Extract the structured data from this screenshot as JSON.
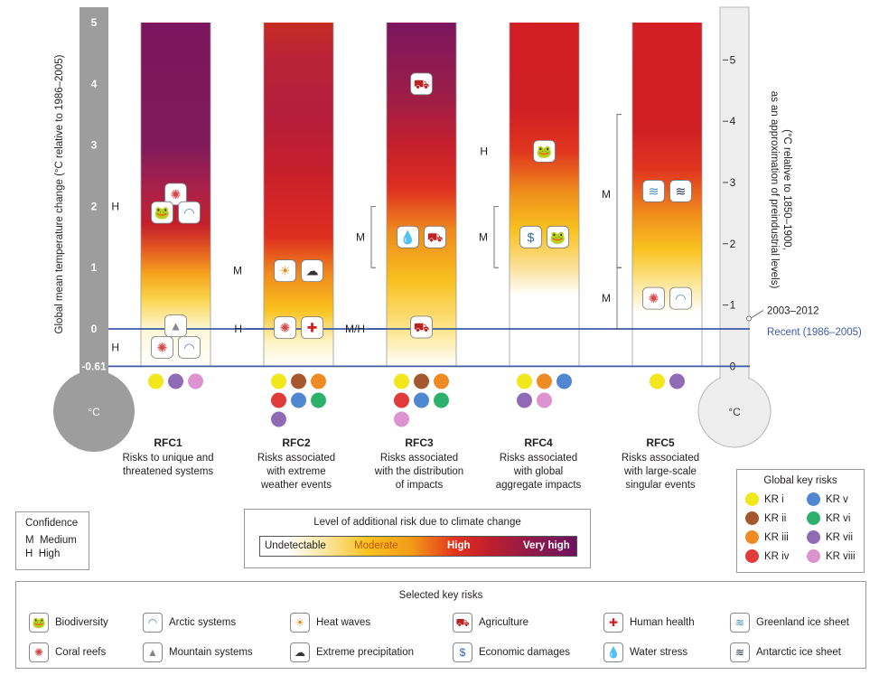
{
  "chart_data": {
    "type": "bar",
    "ylabel_left": "Global mean temperature change (°C relative to 1986–2005)",
    "ylabel_right": "(°C relative to 1850–1900, as an approximation of preindustrial levels)",
    "left_ticks": [
      "5",
      "4",
      "3",
      "2",
      "1",
      "0",
      "-0.61"
    ],
    "right_ticks": [
      "5",
      "4",
      "3",
      "2",
      "1",
      "0"
    ],
    "thermometer_unit": "°C",
    "ylim": [
      -0.61,
      5
    ],
    "reference_lines": [
      {
        "label": "Recent (1986–2005)",
        "value": 0,
        "color": "#3c5aa6"
      },
      {
        "label": "",
        "value": -0.61,
        "color": "#3c5aa6"
      }
    ],
    "marker_label": "2003–2012",
    "marker_value": 0.17,
    "categories": [
      "RFC1",
      "RFC2",
      "RFC3",
      "RFC4",
      "RFC5"
    ],
    "columns": [
      {
        "name": "RFC1",
        "desc": [
          "Risks to unique and",
          "threatened systems"
        ],
        "white_top": 0,
        "kr_colors": [
          "#f2e61c",
          "#8f6bb6",
          "#dd93cf"
        ],
        "stops": [
          [
            -0.61,
            "#ffffff"
          ],
          [
            0,
            "#fff7d6"
          ],
          [
            0.5,
            "#fbd34a"
          ],
          [
            0.9,
            "#f6a21c"
          ],
          [
            1.3,
            "#e45a22"
          ],
          [
            1.7,
            "#c41f2c"
          ],
          [
            2.3,
            "#a8204a"
          ],
          [
            3.0,
            "#801a5a"
          ],
          [
            5,
            "#7b165f"
          ]
        ]
      },
      {
        "name": "RFC2",
        "desc": [
          "Risks associated",
          "with extreme",
          "weather events"
        ],
        "white_top": 0,
        "kr_colors": [
          "#f2e61c",
          "#a5572e",
          "#ee8b23",
          "#e23b3b",
          "#4f87d1",
          "#2eb06d",
          "#8f6bb6"
        ],
        "stops": [
          [
            -0.61,
            "#ffffff"
          ],
          [
            -0.2,
            "#fff3c2"
          ],
          [
            0.3,
            "#f9c31f"
          ],
          [
            0.9,
            "#f08a1c"
          ],
          [
            1.5,
            "#de2e20"
          ],
          [
            2.5,
            "#c81f2a"
          ],
          [
            3.5,
            "#b51e3b"
          ],
          [
            4.4,
            "#b82338"
          ],
          [
            5,
            "#c52b22"
          ]
        ]
      },
      {
        "name": "RFC3",
        "desc": [
          "Risks associated",
          "with the distribution",
          "of impacts"
        ],
        "white_top": 0,
        "kr_colors": [
          "#f2e61c",
          "#a5572e",
          "#ee8b23",
          "#e23b3b",
          "#4f87d1",
          "#2eb06d",
          "#dd93cf"
        ],
        "stops": [
          [
            -0.61,
            "#ffffff"
          ],
          [
            0,
            "#fde58a"
          ],
          [
            0.8,
            "#f8c01f"
          ],
          [
            1.6,
            "#f08a1c"
          ],
          [
            2.3,
            "#de2e20"
          ],
          [
            3.0,
            "#c41e2c"
          ],
          [
            3.8,
            "#9d1d48"
          ],
          [
            5,
            "#7b165f"
          ]
        ]
      },
      {
        "name": "RFC4",
        "desc": [
          "Risks associated",
          "with global",
          "aggregate impacts"
        ],
        "white_top": 0.55,
        "kr_colors": [
          "#f2e61c",
          "#ee8b23",
          "#4f87d1",
          "#8f6bb6",
          "#dd93cf"
        ],
        "stops": [
          [
            0.55,
            "#ffffff"
          ],
          [
            1.0,
            "#fbe09a"
          ],
          [
            1.6,
            "#f9c31f"
          ],
          [
            2.2,
            "#f0921c"
          ],
          [
            2.9,
            "#e0351f"
          ],
          [
            3.6,
            "#cf1e24"
          ],
          [
            5,
            "#d01e24"
          ]
        ]
      },
      {
        "name": "RFC5",
        "desc": [
          "Risks associated",
          "with large-scale",
          "singular events"
        ],
        "white_top": 0.25,
        "kr_colors": [
          "#f2e61c",
          "#8f6bb6"
        ],
        "stops": [
          [
            0.25,
            "#ffffff"
          ],
          [
            0.7,
            "#fde8a0"
          ],
          [
            1.3,
            "#f9c31f"
          ],
          [
            1.9,
            "#f08a1c"
          ],
          [
            2.6,
            "#e0351f"
          ],
          [
            3.3,
            "#d01e24"
          ],
          [
            5,
            "#d21e24"
          ]
        ]
      }
    ],
    "confidence_marks": [
      {
        "col": 0,
        "text": "H",
        "value": 2.0
      },
      {
        "col": 0,
        "text": "H",
        "value": -0.3
      },
      {
        "col": 1,
        "text": "M",
        "value": 0.95
      },
      {
        "col": 1,
        "text": "H",
        "value": 0
      },
      {
        "col": 2,
        "text": "M",
        "value": 1.5,
        "bracket": [
          1.0,
          2.0
        ]
      },
      {
        "col": 2,
        "text": "M/H",
        "value": 0
      },
      {
        "col": 3,
        "text": "H",
        "value": 2.9
      },
      {
        "col": 3,
        "text": "M",
        "value": 1.5,
        "bracket": [
          1.0,
          2.0
        ]
      },
      {
        "col": 4,
        "text": "M",
        "value": 2.2,
        "bracket": [
          1.0,
          3.5
        ]
      },
      {
        "col": 4,
        "text": "M",
        "value": 0.5,
        "bracket": [
          0,
          1.0
        ]
      }
    ],
    "risk_icons": [
      {
        "col": 0,
        "value": 2.2,
        "offset": 0,
        "icon": "coral-reefs-icon"
      },
      {
        "col": 0,
        "value": 1.9,
        "offset": -1,
        "icon": "biodiversity-icon"
      },
      {
        "col": 0,
        "value": 1.9,
        "offset": 1,
        "icon": "arctic-systems-icon"
      },
      {
        "col": 0,
        "value": 0.05,
        "offset": 0,
        "icon": "mountain-systems-icon"
      },
      {
        "col": 0,
        "value": -0.3,
        "offset": -1,
        "icon": "coral-reefs-icon"
      },
      {
        "col": 0,
        "value": -0.3,
        "offset": 1,
        "icon": "arctic-systems-icon"
      },
      {
        "col": 1,
        "value": 0.95,
        "offset": -1,
        "icon": "heat-waves-icon"
      },
      {
        "col": 1,
        "value": 0.95,
        "offset": 1,
        "icon": "extreme-precipitation-icon"
      },
      {
        "col": 1,
        "value": 0.02,
        "offset": -1,
        "icon": "coral-reefs-icon"
      },
      {
        "col": 1,
        "value": 0.02,
        "offset": 1,
        "icon": "human-health-icon"
      },
      {
        "col": 2,
        "value": 4.0,
        "offset": 0,
        "icon": "agriculture-icon"
      },
      {
        "col": 2,
        "value": 1.5,
        "offset": -1,
        "icon": "water-stress-icon"
      },
      {
        "col": 2,
        "value": 1.5,
        "offset": 1,
        "icon": "agriculture-icon"
      },
      {
        "col": 2,
        "value": 0.03,
        "offset": 0,
        "icon": "agriculture-icon"
      },
      {
        "col": 3,
        "value": 2.9,
        "offset": 0,
        "icon": "biodiversity-icon"
      },
      {
        "col": 3,
        "value": 1.5,
        "offset": -1,
        "icon": "economic-damages-icon"
      },
      {
        "col": 3,
        "value": 1.5,
        "offset": 1,
        "icon": "biodiversity-icon"
      },
      {
        "col": 4,
        "value": 2.25,
        "offset": -1,
        "icon": "greenland-ice-sheet-icon"
      },
      {
        "col": 4,
        "value": 2.25,
        "offset": 1,
        "icon": "antarctic-ice-sheet-icon"
      },
      {
        "col": 4,
        "value": 0.5,
        "offset": -1,
        "icon": "coral-reefs-icon"
      },
      {
        "col": 4,
        "value": 0.5,
        "offset": 1,
        "icon": "arctic-systems-icon"
      }
    ]
  },
  "confidence": {
    "title": "Confidence",
    "m": "M  Medium",
    "h": "H  High"
  },
  "level": {
    "title": "Level of additional risk due to climate change",
    "undetectable": "Undetectable",
    "moderate": "Moderate",
    "high": "High",
    "very_high": "Very high"
  },
  "global_key_risks": {
    "title": "Global key risks",
    "items": [
      {
        "label": "KR i",
        "color": "#f2e61c"
      },
      {
        "label": "KR v",
        "color": "#4f87d1"
      },
      {
        "label": "KR ii",
        "color": "#a5572e"
      },
      {
        "label": "KR vi",
        "color": "#2eb06d"
      },
      {
        "label": "KR iii",
        "color": "#ee8b23"
      },
      {
        "label": "KR vii",
        "color": "#8f6bb6"
      },
      {
        "label": "KR iv",
        "color": "#e23b3b"
      },
      {
        "label": "KR viii",
        "color": "#dd93cf"
      }
    ]
  },
  "selected_key_risks": {
    "title": "Selected key risks",
    "items": [
      {
        "label": "Biodiversity",
        "icon": "biodiversity-icon"
      },
      {
        "label": "Coral reefs",
        "icon": "coral-reefs-icon"
      },
      {
        "label": "Arctic systems",
        "icon": "arctic-systems-icon"
      },
      {
        "label": "Mountain systems",
        "icon": "mountain-systems-icon"
      },
      {
        "label": "Heat waves",
        "icon": "heat-waves-icon"
      },
      {
        "label": "Extreme precipitation",
        "icon": "extreme-precipitation-icon"
      },
      {
        "label": "Agriculture",
        "icon": "agriculture-icon"
      },
      {
        "label": "Economic damages",
        "icon": "economic-damages-icon"
      },
      {
        "label": "Human health",
        "icon": "human-health-icon"
      },
      {
        "label": "Water stress",
        "icon": "water-stress-icon"
      },
      {
        "label": "Greenland ice sheet",
        "icon": "greenland-ice-sheet-icon"
      },
      {
        "label": "Antarctic ice sheet",
        "icon": "antarctic-ice-sheet-icon"
      }
    ]
  }
}
